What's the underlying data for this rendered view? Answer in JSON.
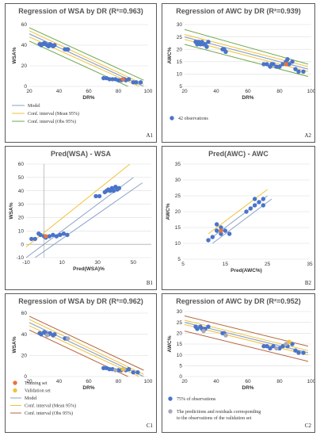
{
  "chart_data": [
    {
      "id": "A1",
      "type": "scatter",
      "panel_label": "A1",
      "title": "Regression of WSA by DR (R²=0.963)",
      "xlabel": "DR%",
      "ylabel": "WSA%",
      "xlim": [
        20,
        100
      ],
      "ylim": [
        0,
        60
      ],
      "xticks": [
        20,
        40,
        60,
        80,
        100
      ],
      "yticks": [
        0,
        20,
        40,
        60
      ],
      "points": [
        [
          27,
          41
        ],
        [
          28,
          40
        ],
        [
          29,
          41
        ],
        [
          30,
          42
        ],
        [
          31,
          41
        ],
        [
          32,
          40
        ],
        [
          33,
          39
        ],
        [
          34,
          41
        ],
        [
          35,
          40
        ],
        [
          36,
          39
        ],
        [
          37,
          40
        ],
        [
          44,
          36
        ],
        [
          45,
          36
        ],
        [
          46,
          36
        ],
        [
          70,
          8
        ],
        [
          72,
          8
        ],
        [
          74,
          7
        ],
        [
          76,
          7
        ],
        [
          78,
          7
        ],
        [
          80,
          6
        ],
        [
          82,
          6
        ],
        [
          84,
          7
        ],
        [
          85,
          6
        ],
        [
          87,
          7
        ],
        [
          90,
          4
        ],
        [
          92,
          4
        ],
        [
          95,
          4
        ]
      ],
      "highlight_points": [
        [
          83,
          7
        ]
      ],
      "lines": [
        {
          "name": "Model",
          "color": "#8aa2c8",
          "width": 1.2,
          "from": [
            20,
            51
          ],
          "to": [
            97,
            0
          ]
        },
        {
          "name": "Conf. interval (Mean 95%)",
          "color": "#f1c23a",
          "width": 1,
          "from": [
            20,
            54
          ],
          "to": [
            97,
            2
          ]
        },
        {
          "name": "",
          "color": "#f1c23a",
          "width": 1,
          "from": [
            20,
            48
          ],
          "to": [
            97,
            -2
          ]
        },
        {
          "name": "Conf. interval (Obs 95%)",
          "color": "#6fa84e",
          "width": 1,
          "from": [
            20,
            57
          ],
          "to": [
            97,
            6
          ]
        },
        {
          "name": "",
          "color": "#6fa84e",
          "width": 1,
          "from": [
            20,
            44
          ],
          "to": [
            97,
            -7
          ]
        }
      ],
      "legend": [
        "Model",
        "Conf. interval (Mean 95%)",
        "Conf. interval (Obs 95%)"
      ]
    },
    {
      "id": "A2",
      "type": "scatter",
      "panel_label": "A2",
      "title": "Regression of AWC by DR (R²=0.939)",
      "xlabel": "DR%",
      "ylabel": "AWC%",
      "xlim": [
        20,
        100
      ],
      "ylim": [
        5,
        30
      ],
      "xticks": [
        20,
        40,
        60,
        80,
        100
      ],
      "yticks": [
        5,
        10,
        15,
        20,
        25,
        30
      ],
      "points": [
        [
          27,
          23
        ],
        [
          28,
          22
        ],
        [
          29,
          23
        ],
        [
          30,
          22
        ],
        [
          31,
          23
        ],
        [
          32,
          22
        ],
        [
          33,
          22
        ],
        [
          34,
          21
        ],
        [
          35,
          23
        ],
        [
          44,
          20
        ],
        [
          45,
          20
        ],
        [
          46,
          19
        ],
        [
          70,
          14
        ],
        [
          72,
          14
        ],
        [
          74,
          13
        ],
        [
          75,
          14
        ],
        [
          76,
          14
        ],
        [
          78,
          13
        ],
        [
          80,
          13
        ],
        [
          82,
          14
        ],
        [
          84,
          15
        ],
        [
          85,
          16
        ],
        [
          86,
          14
        ],
        [
          88,
          15
        ],
        [
          90,
          12
        ],
        [
          92,
          11
        ],
        [
          95,
          11
        ]
      ],
      "highlight_points": [
        [
          84,
          14
        ]
      ],
      "lines": [
        {
          "name": "Model",
          "color": "#8aa2c8",
          "width": 1.2,
          "from": [
            20,
            25
          ],
          "to": [
            98,
            12
          ]
        },
        {
          "name": "",
          "color": "#f1c23a",
          "width": 1,
          "from": [
            20,
            26
          ],
          "to": [
            98,
            13
          ]
        },
        {
          "name": "",
          "color": "#f1c23a",
          "width": 1,
          "from": [
            20,
            24
          ],
          "to": [
            98,
            11
          ]
        },
        {
          "name": "",
          "color": "#6fa84e",
          "width": 1,
          "from": [
            20,
            28
          ],
          "to": [
            98,
            14
          ]
        },
        {
          "name": "",
          "color": "#6fa84e",
          "width": 1,
          "from": [
            20,
            22
          ],
          "to": [
            98,
            9
          ]
        }
      ],
      "legend_marker": "42 observations"
    },
    {
      "id": "B1",
      "type": "scatter",
      "panel_label": "B1",
      "title": "Pred(WSA) - WSA",
      "xlabel": "Pred(WSA)%",
      "ylabel": "WSA%",
      "xlim": [
        -10,
        60
      ],
      "ylim": [
        -10,
        60
      ],
      "xticks": [
        -10,
        10,
        30,
        50
      ],
      "yticks": [
        -10,
        0,
        10,
        20,
        30,
        40,
        50,
        60
      ],
      "points": [
        [
          -7,
          4
        ],
        [
          -5,
          4
        ],
        [
          -3,
          8
        ],
        [
          -2,
          7
        ],
        [
          0,
          6
        ],
        [
          1,
          5
        ],
        [
          3,
          6
        ],
        [
          5,
          7
        ],
        [
          7,
          6
        ],
        [
          9,
          7
        ],
        [
          11,
          8
        ],
        [
          13,
          7
        ],
        [
          29,
          36
        ],
        [
          31,
          36
        ],
        [
          34,
          39
        ],
        [
          35,
          40
        ],
        [
          36,
          41
        ],
        [
          37,
          40
        ],
        [
          38,
          42
        ],
        [
          39,
          40
        ],
        [
          40,
          43
        ],
        [
          41,
          41
        ],
        [
          42,
          42
        ]
      ],
      "highlight_points": [
        [
          1,
          6
        ]
      ],
      "lines": [
        {
          "name": "",
          "color": "#8aa2c8",
          "width": 1,
          "from": [
            -10,
            -10
          ],
          "to": [
            50,
            50
          ]
        },
        {
          "name": "",
          "color": "#f1c23a",
          "width": 1,
          "from": [
            -10,
            -2
          ],
          "to": [
            48,
            60
          ]
        },
        {
          "name": "",
          "color": "#8aa2c8",
          "width": 1,
          "from": [
            -5,
            -10
          ],
          "to": [
            55,
            46
          ]
        }
      ]
    },
    {
      "id": "B2",
      "type": "scatter",
      "panel_label": "B2",
      "title": "Pred(AWC) - AWC",
      "xlabel": "Pred(AWC%)",
      "ylabel": "AWC%",
      "xlim": [
        5,
        35
      ],
      "ylim": [
        5,
        35
      ],
      "xticks": [
        5,
        15,
        25,
        35
      ],
      "yticks": [
        5,
        10,
        15,
        20,
        25,
        30,
        35
      ],
      "points": [
        [
          11,
          11
        ],
        [
          12,
          12
        ],
        [
          13,
          14
        ],
        [
          13,
          16
        ],
        [
          14,
          13
        ],
        [
          14,
          15
        ],
        [
          15,
          14
        ],
        [
          16,
          13
        ],
        [
          20,
          20
        ],
        [
          21,
          21
        ],
        [
          22,
          22
        ],
        [
          22,
          24
        ],
        [
          23,
          23
        ],
        [
          24,
          22
        ],
        [
          24,
          24
        ]
      ],
      "highlight_points": [
        [
          14,
          14
        ]
      ],
      "lines": [
        {
          "name": "",
          "color": "#8aa2c8",
          "width": 1,
          "from": [
            11,
            11
          ],
          "to": [
            25,
            25
          ]
        },
        {
          "name": "",
          "color": "#f1c23a",
          "width": 1,
          "from": [
            11,
            13
          ],
          "to": [
            25,
            27
          ]
        },
        {
          "name": "",
          "color": "#8aa2c8",
          "width": 1,
          "from": [
            12,
            10
          ],
          "to": [
            26,
            24
          ]
        }
      ]
    },
    {
      "id": "C1",
      "type": "scatter",
      "panel_label": "C1",
      "title": "Regression of WSA by DR (R²=0.962)",
      "xlabel": "DR%",
      "ylabel": "WSA%",
      "xlim": [
        20,
        100
      ],
      "ylim": [
        0,
        60
      ],
      "xticks": [
        20,
        40,
        60,
        80,
        100
      ],
      "yticks": [
        0,
        20,
        40,
        60
      ],
      "points": [
        [
          27,
          41
        ],
        [
          28,
          40
        ],
        [
          30,
          42
        ],
        [
          31,
          41
        ],
        [
          33,
          40
        ],
        [
          34,
          41
        ],
        [
          36,
          39
        ],
        [
          37,
          40
        ],
        [
          44,
          36
        ],
        [
          45,
          36
        ],
        [
          70,
          8
        ],
        [
          72,
          8
        ],
        [
          74,
          7
        ],
        [
          76,
          7
        ],
        [
          80,
          6
        ],
        [
          82,
          6
        ],
        [
          85,
          6
        ],
        [
          87,
          7
        ],
        [
          90,
          4
        ],
        [
          93,
          4
        ]
      ],
      "validation_points": [
        [
          32,
          39
        ],
        [
          46,
          36
        ],
        [
          78,
          6
        ],
        [
          84,
          7
        ]
      ],
      "training_points": [
        [
          83,
          7
        ]
      ],
      "lines": [
        {
          "name": "Model",
          "color": "#8aa2c8",
          "width": 1.2,
          "from": [
            20,
            51
          ],
          "to": [
            97,
            0
          ]
        },
        {
          "name": "Conf. interval (Mean 95%)",
          "color": "#f1c23a",
          "width": 1,
          "from": [
            20,
            54
          ],
          "to": [
            97,
            2
          ]
        },
        {
          "name": "",
          "color": "#f1c23a",
          "width": 1,
          "from": [
            20,
            48
          ],
          "to": [
            97,
            -2
          ]
        },
        {
          "name": "Conf. interval (Obs 95%)",
          "color": "#b5653d",
          "width": 1,
          "from": [
            20,
            57
          ],
          "to": [
            97,
            6
          ]
        },
        {
          "name": "",
          "color": "#b5653d",
          "width": 1,
          "from": [
            20,
            44
          ],
          "to": [
            97,
            -7
          ]
        }
      ],
      "legend": [
        "Training set",
        "Validation set",
        "Model",
        "Conf. interval (Mean 95%)",
        "Conf. interval (Obs 95%)"
      ]
    },
    {
      "id": "C2",
      "type": "scatter",
      "panel_label": "C2",
      "title": "Regression of AWC by DR (R²=0.952)",
      "xlabel": "DR%",
      "ylabel": "AWC%",
      "xlim": [
        20,
        100
      ],
      "ylim": [
        0,
        30
      ],
      "xticks": [
        20,
        40,
        60,
        80,
        100
      ],
      "yticks": [
        0,
        5,
        10,
        15,
        20,
        25,
        30
      ],
      "points": [
        [
          27,
          23
        ],
        [
          28,
          22
        ],
        [
          30,
          23
        ],
        [
          31,
          22
        ],
        [
          33,
          22
        ],
        [
          35,
          23
        ],
        [
          44,
          20
        ],
        [
          45,
          20
        ],
        [
          70,
          14
        ],
        [
          72,
          14
        ],
        [
          74,
          13
        ],
        [
          76,
          14
        ],
        [
          80,
          13
        ],
        [
          82,
          14
        ],
        [
          85,
          14
        ],
        [
          88,
          15
        ],
        [
          90,
          12
        ],
        [
          92,
          11
        ],
        [
          95,
          11
        ]
      ],
      "validation_points": [
        [
          32,
          21
        ],
        [
          46,
          19
        ],
        [
          78,
          13
        ],
        [
          84,
          15
        ]
      ],
      "training_points": [
        [
          86,
          16
        ]
      ],
      "lines": [
        {
          "name": "",
          "color": "#8aa2c8",
          "width": 1.2,
          "from": [
            20,
            25
          ],
          "to": [
            98,
            11
          ]
        },
        {
          "name": "",
          "color": "#f1c23a",
          "width": 1,
          "from": [
            20,
            26
          ],
          "to": [
            98,
            12
          ]
        },
        {
          "name": "",
          "color": "#f1c23a",
          "width": 1,
          "from": [
            20,
            24
          ],
          "to": [
            98,
            10
          ]
        },
        {
          "name": "",
          "color": "#b5653d",
          "width": 1,
          "from": [
            20,
            28
          ],
          "to": [
            98,
            14
          ]
        },
        {
          "name": "",
          "color": "#b5653d",
          "width": 1,
          "from": [
            20,
            21
          ],
          "to": [
            98,
            7
          ]
        }
      ],
      "legend": [
        "75% of observations",
        "The predictions and residuals corresponding",
        "to the observations of the validation set"
      ]
    }
  ],
  "colors": {
    "point": "#4a74c9",
    "highlight": "#e8743b",
    "validation": "#a9a9b8",
    "training_legend": "#e8743b",
    "validation_legend": "#f2c13a",
    "grid": "#dddddd"
  }
}
